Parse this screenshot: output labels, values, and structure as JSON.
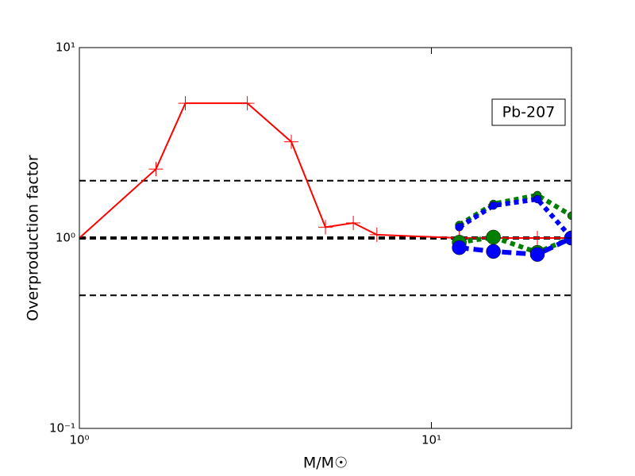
{
  "chart_data": {
    "type": "line",
    "xlabel": "M/M☉",
    "ylabel": "Overproduction factor",
    "annotation": "Pb-207",
    "xscale": "log",
    "yscale": "log",
    "xlim": [
      1,
      25
    ],
    "ylim": [
      0.1,
      10
    ],
    "xticks": [
      {
        "value": 1,
        "label": "10⁰"
      },
      {
        "value": 10,
        "label": "10¹"
      }
    ],
    "yticks": [
      {
        "value": 0.1,
        "label": "10⁻¹"
      },
      {
        "value": 1,
        "label": "10⁰"
      },
      {
        "value": 10,
        "label": "10¹"
      }
    ],
    "reference_lines": [
      2,
      1,
      0.5
    ],
    "series": [
      {
        "color": "#ff0000",
        "linestyle": "solid",
        "marker": "+",
        "x": [
          1,
          1.65,
          2,
          3,
          4,
          5,
          6,
          7,
          12,
          15,
          20,
          25
        ],
        "values": [
          1.0,
          2.3,
          5.1,
          5.1,
          3.2,
          1.14,
          1.2,
          1.04,
          1.0,
          1.0,
          1.0,
          1.0
        ]
      },
      {
        "color": "#008000",
        "linestyle": "dotted",
        "marker": "o",
        "x": [
          12,
          15,
          20,
          25
        ],
        "values": [
          1.17,
          1.51,
          1.68,
          1.31
        ]
      },
      {
        "color": "#0000ff",
        "linestyle": "dotted",
        "marker": "o",
        "x": [
          12,
          15,
          20,
          25
        ],
        "values": [
          1.14,
          1.48,
          1.6,
          1.0
        ]
      },
      {
        "color": "#008000",
        "linestyle": "dotted",
        "marker": "o",
        "x": [
          12,
          15,
          20,
          25
        ],
        "values": [
          0.95,
          1.01,
          0.84,
          1.0
        ]
      },
      {
        "color": "#0000ff",
        "linestyle": "dashed",
        "marker": "o",
        "x": [
          12,
          15,
          20,
          25
        ],
        "values": [
          0.89,
          0.85,
          0.82,
          1.0
        ]
      }
    ]
  }
}
